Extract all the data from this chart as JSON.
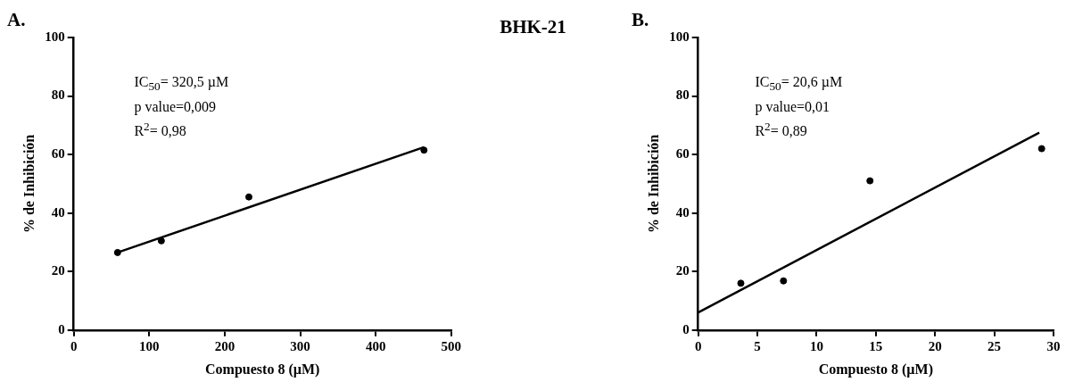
{
  "chart_data": [
    {
      "type": "scatter",
      "title": "A.",
      "xlabel": "Compuesto 8 (µM)",
      "ylabel": "% de Inhibición",
      "xlim": [
        0,
        500
      ],
      "xticks": [
        0,
        100,
        200,
        300,
        400,
        500
      ],
      "ylim": [
        0,
        100
      ],
      "yticks": [
        0,
        20,
        40,
        60,
        80,
        100
      ],
      "marker": "circle",
      "annotations": [
        "BHK-21",
        "IC$_{50}$= 320,5 µM",
        "p value=0,009",
        "R$^{2}$= 0,98"
      ],
      "series": [
        {
          "type": "scatter",
          "color": "#000000",
          "x": [
            58,
            116,
            232,
            464
          ],
          "values": [
            26.5,
            30.5,
            45.5,
            61.5
          ]
        },
        {
          "type": "line",
          "color": "#000000",
          "marker": "none",
          "x": [
            58,
            464
          ],
          "values": [
            26.5,
            62.5
          ]
        }
      ]
    },
    {
      "type": "scatter",
      "title": "B.",
      "xlabel": "Compuesto 8 (µM)",
      "ylabel": "% de Inhibición",
      "xlim": [
        0,
        30
      ],
      "xticks": [
        0,
        5,
        10,
        15,
        20,
        25,
        30
      ],
      "ylim": [
        0,
        100
      ],
      "yticks": [
        0,
        20,
        40,
        60,
        80,
        100
      ],
      "marker": "circle",
      "annotations": [
        "IC$_{50}$= 20,6 µM",
        "p value=0,01",
        "R$^{2}$= 0,89"
      ],
      "series": [
        {
          "type": "scatter",
          "color": "#000000",
          "x": [
            3.6,
            7.2,
            14.5,
            29
          ],
          "values": [
            16,
            16.8,
            51,
            62
          ]
        },
        {
          "type": "line",
          "color": "#000000",
          "marker": "none",
          "x": [
            0,
            28.8
          ],
          "values": [
            6,
            67.5
          ]
        }
      ]
    }
  ]
}
